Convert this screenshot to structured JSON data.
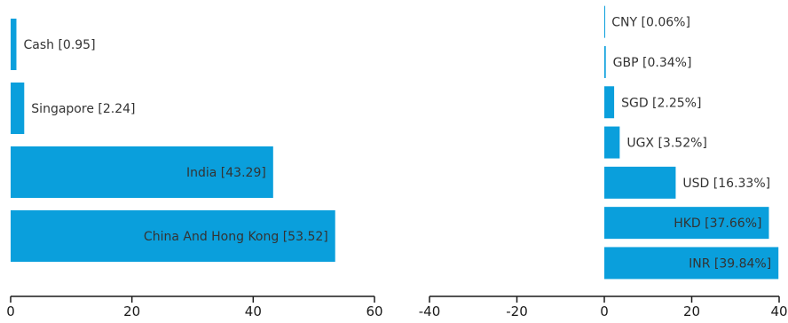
{
  "colors": {
    "bar": "#0a9fdc",
    "axis": "#1a1a1a",
    "text": "#333333",
    "tick_text": "#1a1a1a"
  },
  "chart_data": [
    {
      "type": "bar",
      "orientation": "horizontal",
      "categories": [
        "Cash",
        "Singapore",
        "India",
        "China And Hong Kong"
      ],
      "values": [
        0.95,
        2.24,
        43.29,
        53.52
      ],
      "labels": [
        "Cash [0.95]",
        "Singapore [2.24]",
        "India [43.29]",
        "China And Hong Kong [53.52]"
      ],
      "xlim": [
        0,
        60
      ],
      "xticks": [
        0,
        20,
        40,
        60
      ],
      "xtick_labels": [
        "0",
        "20",
        "40",
        "60"
      ],
      "grid": false
    },
    {
      "type": "bar",
      "orientation": "horizontal",
      "categories": [
        "CNY",
        "GBP",
        "SGD",
        "UGX",
        "USD",
        "HKD",
        "INR"
      ],
      "values": [
        0.06,
        0.34,
        2.25,
        3.52,
        16.33,
        37.66,
        39.84
      ],
      "labels": [
        "CNY [0.06%]",
        "GBP [0.34%]",
        "SGD [2.25%]",
        "UGX [3.52%]",
        "USD [16.33%]",
        "HKD [37.66%]",
        "INR [39.84%]"
      ],
      "xlim": [
        -40,
        40
      ],
      "xticks": [
        -40,
        -20,
        0,
        20,
        40
      ],
      "xtick_labels": [
        "-40",
        "-20",
        "0",
        "20",
        "40"
      ],
      "grid": false
    }
  ]
}
